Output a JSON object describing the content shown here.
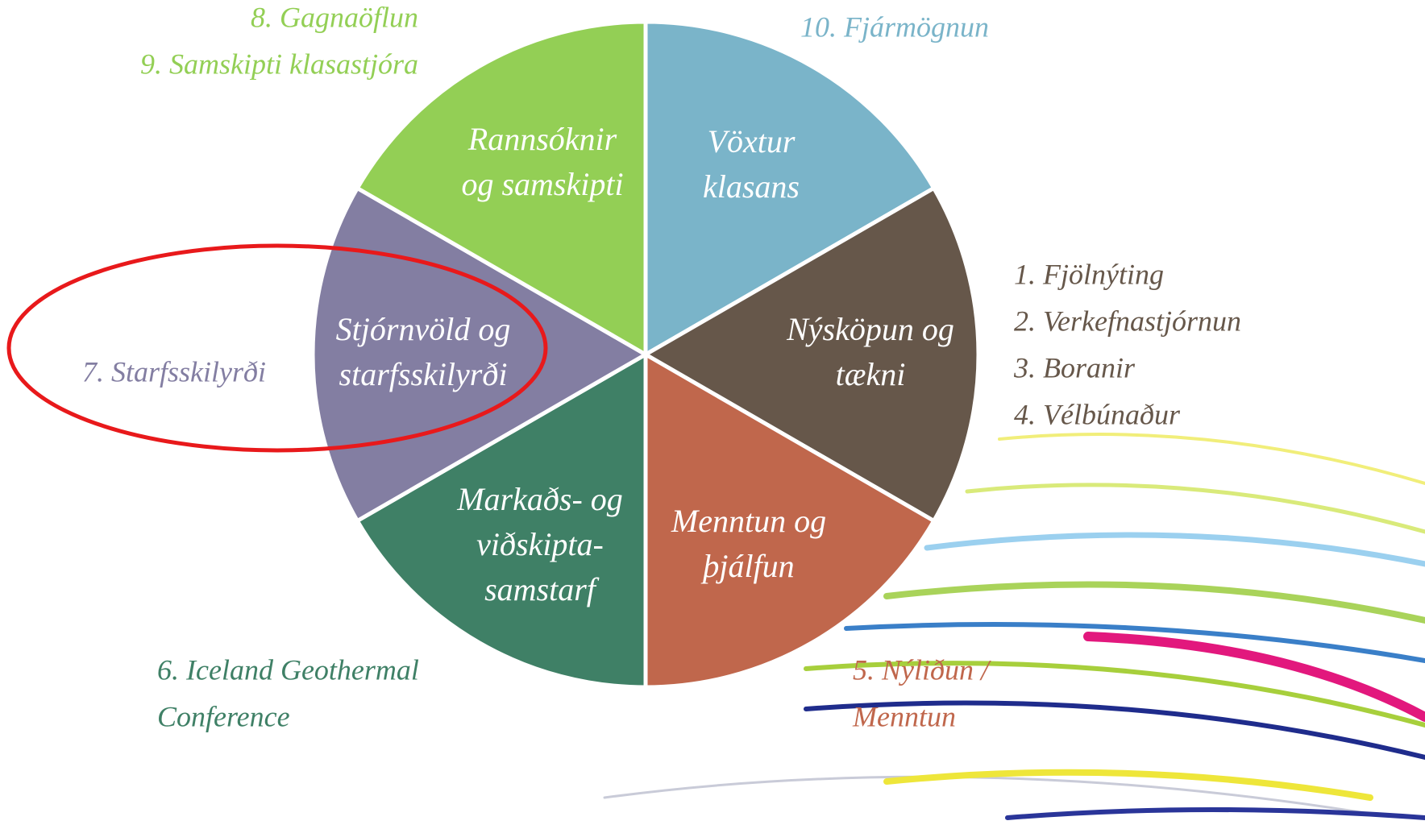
{
  "segments": [
    {
      "lines": [
        "Vöxtur",
        "klasans"
      ],
      "color": "#7ab4c9"
    },
    {
      "lines": [
        "Nýsköpun og",
        "tækni"
      ],
      "color": "#66574a"
    },
    {
      "lines": [
        "Menntun og",
        "þjálfun"
      ],
      "color": "#c0674c"
    },
    {
      "lines": [
        "Markaðs- og",
        "viðskipta-",
        "samstarf"
      ],
      "color": "#3f8066"
    },
    {
      "lines": [
        "Stjórnvöld og",
        "starfsskilyrði"
      ],
      "color": "#837ea2"
    },
    {
      "lines": [
        "Rannsóknir",
        "og samskipti"
      ],
      "color": "#93cf55"
    }
  ],
  "outer_labels": [
    {
      "lines": [
        "10. Fjármögnun"
      ],
      "color": "#7ab4c9"
    },
    {
      "lines": [
        "1. Fjölnýting",
        "2. Verkefnastjórnun",
        "3. Boranir",
        "4. Vélbúnaður"
      ],
      "color": "#66574a"
    },
    {
      "lines": [
        "5. Nýliðun /",
        "Menntun"
      ],
      "color": "#c0674c"
    },
    {
      "lines": [
        "6. Iceland Geothermal",
        "Conference"
      ],
      "color": "#3f8066"
    },
    {
      "lines": [
        "7. Starfsskilyrði"
      ],
      "color": "#837ea2"
    },
    {
      "lines": [
        "8. Gagnaöflun",
        "9. Samskipti klasastjóra"
      ],
      "color": "#93cf55"
    }
  ]
}
